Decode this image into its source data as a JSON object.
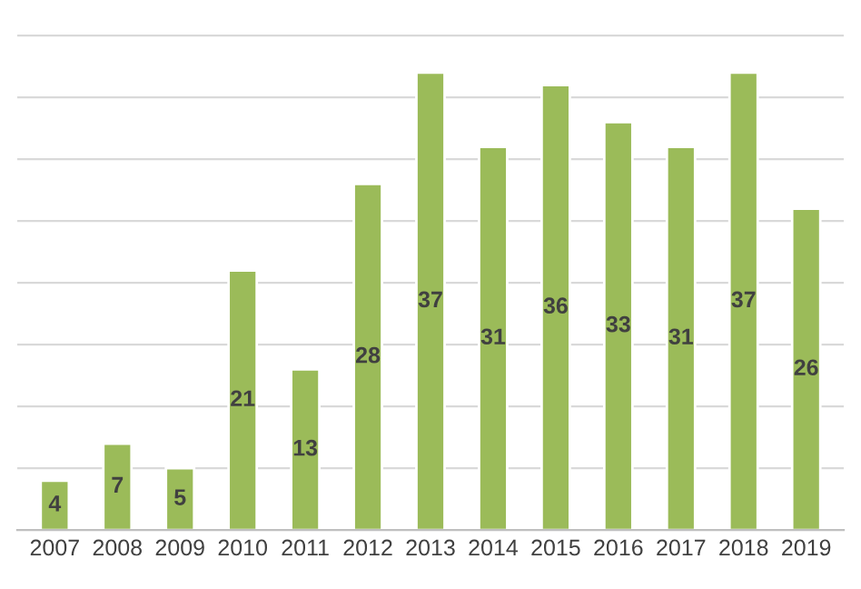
{
  "chart_data": {
    "type": "bar",
    "categories": [
      "2007",
      "2008",
      "2009",
      "2010",
      "2011",
      "2012",
      "2013",
      "2014",
      "2015",
      "2016",
      "2017",
      "2018",
      "2019"
    ],
    "values": [
      4,
      7,
      5,
      21,
      13,
      28,
      37,
      31,
      36,
      33,
      31,
      37,
      26
    ],
    "color": "#9bbb59",
    "yticks": [
      {
        "value": 0,
        "label": null
      },
      {
        "value": 5,
        "label": null
      },
      {
        "value": 10,
        "label": null
      },
      {
        "value": 15,
        "label": null
      },
      {
        "value": 20,
        "label": null
      },
      {
        "value": 25,
        "label": null
      },
      {
        "value": 30,
        "label": null
      },
      {
        "value": 35,
        "label": null
      },
      {
        "value": 40,
        "label": null
      }
    ],
    "tick_labels": "x",
    "grid": "y",
    "data_labels": true
  }
}
